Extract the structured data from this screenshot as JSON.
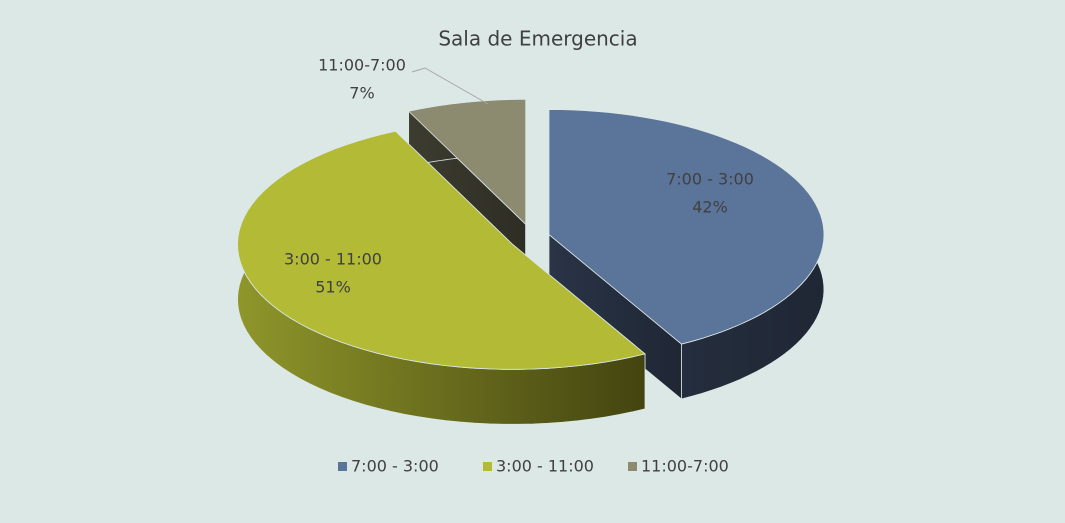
{
  "chart_data": {
    "type": "pie",
    "title": "Sala de Emergencia",
    "categories": [
      "7:00 - 3:00",
      "3:00 - 11:00",
      "11:00-7:00"
    ],
    "values": [
      42,
      51,
      7
    ],
    "value_labels": [
      "42%",
      "51%",
      "7%"
    ],
    "colors": [
      "#5b7499",
      "#b2ba36",
      "#8d8b6f"
    ],
    "legend": "bottom"
  }
}
